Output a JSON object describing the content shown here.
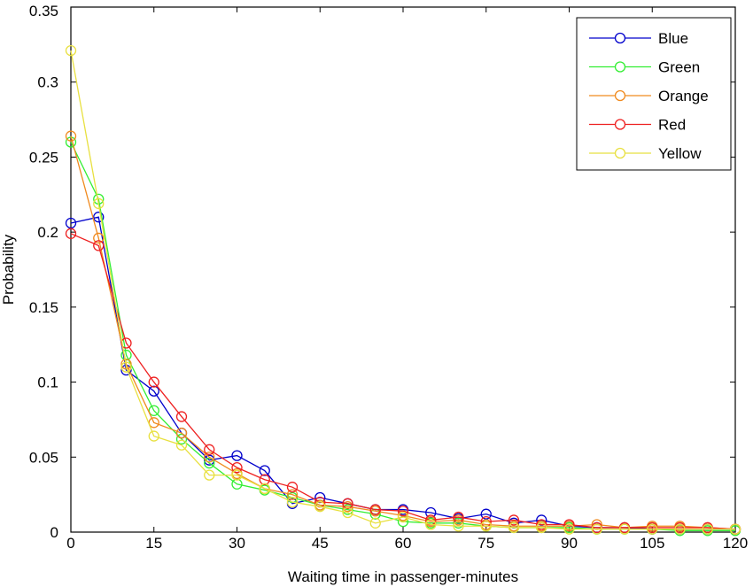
{
  "chart_data": {
    "type": "line",
    "xlabel": "Waiting time in passenger-minutes",
    "ylabel": "Probability",
    "xlim": [
      0,
      120
    ],
    "ylim": [
      0,
      0.35
    ],
    "xticks": [
      0,
      15,
      30,
      45,
      60,
      75,
      90,
      105,
      120
    ],
    "yticks": [
      0,
      0.05,
      0.1,
      0.15,
      0.2,
      0.25,
      0.3,
      0.35
    ],
    "xtick_labels": [
      "0",
      "15",
      "30",
      "45",
      "60",
      "75",
      "90",
      "105",
      "120"
    ],
    "ytick_labels": [
      "0",
      "0.05",
      "0.1",
      "0.15",
      "0.2",
      "0.25",
      "0.3",
      "0.35"
    ],
    "grid": false,
    "legend_position": "top-right",
    "marker": "open-circle",
    "x": [
      0,
      5,
      10,
      15,
      20,
      25,
      30,
      35,
      40,
      45,
      50,
      55,
      60,
      65,
      70,
      75,
      80,
      85,
      90,
      95,
      100,
      105,
      110,
      115,
      120
    ],
    "series": [
      {
        "name": "Blue",
        "color": "#0000cc",
        "values": [
          0.206,
          0.21,
          0.108,
          0.094,
          0.066,
          0.048,
          0.051,
          0.041,
          0.019,
          0.023,
          0.019,
          0.015,
          0.015,
          0.013,
          0.009,
          0.012,
          0.006,
          0.008,
          0.004,
          0.003,
          0.003,
          0.002,
          0.002,
          0.002,
          0.002
        ]
      },
      {
        "name": "Green",
        "color": "#33ee33",
        "values": [
          0.26,
          0.222,
          0.118,
          0.081,
          0.062,
          0.046,
          0.032,
          0.028,
          0.023,
          0.018,
          0.015,
          0.012,
          0.007,
          0.006,
          0.006,
          0.004,
          0.003,
          0.003,
          0.003,
          0.002,
          0.002,
          0.002,
          0.001,
          0.001,
          0.001
        ]
      },
      {
        "name": "Orange",
        "color": "#f08a1e",
        "values": [
          0.264,
          0.196,
          0.112,
          0.073,
          0.066,
          0.05,
          0.039,
          0.029,
          0.025,
          0.018,
          0.017,
          0.014,
          0.011,
          0.007,
          0.008,
          0.005,
          0.004,
          0.004,
          0.004,
          0.005,
          0.003,
          0.004,
          0.004,
          0.003,
          0.002
        ]
      },
      {
        "name": "Red",
        "color": "#ee2020",
        "values": [
          0.199,
          0.191,
          0.126,
          0.1,
          0.077,
          0.055,
          0.043,
          0.035,
          0.03,
          0.02,
          0.019,
          0.015,
          0.014,
          0.008,
          0.01,
          0.007,
          0.008,
          0.005,
          0.005,
          0.003,
          0.003,
          0.003,
          0.003,
          0.003,
          0.002
        ]
      },
      {
        "name": "Yellow",
        "color": "#e8e040",
        "values": [
          0.321,
          0.219,
          0.11,
          0.064,
          0.058,
          0.038,
          0.038,
          0.029,
          0.02,
          0.017,
          0.013,
          0.006,
          0.01,
          0.005,
          0.004,
          0.004,
          0.003,
          0.003,
          0.002,
          0.002,
          0.002,
          0.002,
          0.002,
          0.002,
          0.002
        ]
      }
    ]
  }
}
